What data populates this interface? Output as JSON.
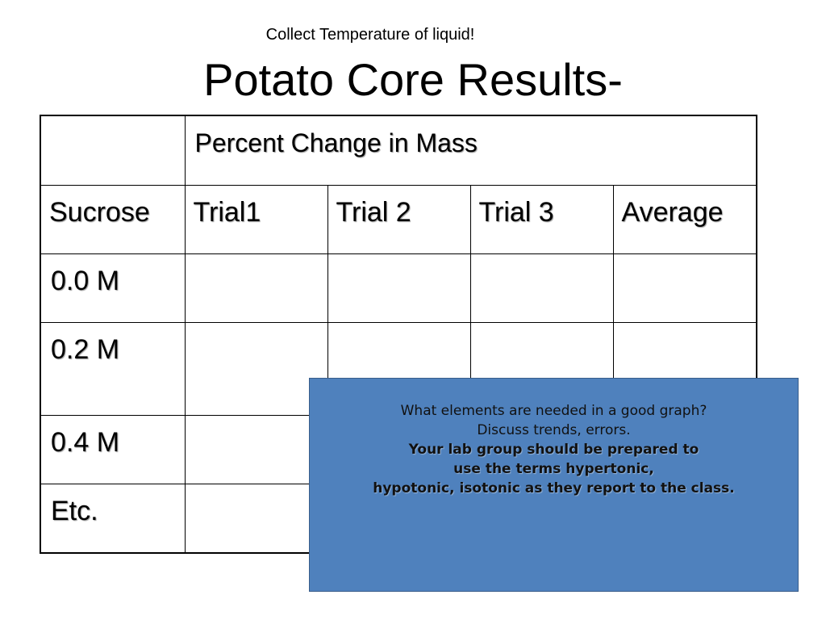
{
  "note": "Collect Temperature of liquid!",
  "title": "Potato Core Results-",
  "table": {
    "header_span_label": "Percent Change in Mass",
    "columns": [
      "Sucrose",
      "Trial1",
      "Trial 2",
      "Trial 3",
      "Average"
    ],
    "row_labels": [
      "0.0 M",
      "0.2 M",
      "0.4 M",
      "Etc."
    ]
  },
  "popup": {
    "lines": [
      "What elements are needed in a good graph?",
      "Discuss trends, errors."
    ],
    "bold_lines": [
      "Your lab group should be prepared to",
      "use the terms hypertonic,",
      "hypotonic, isotonic as they report to the class."
    ]
  }
}
